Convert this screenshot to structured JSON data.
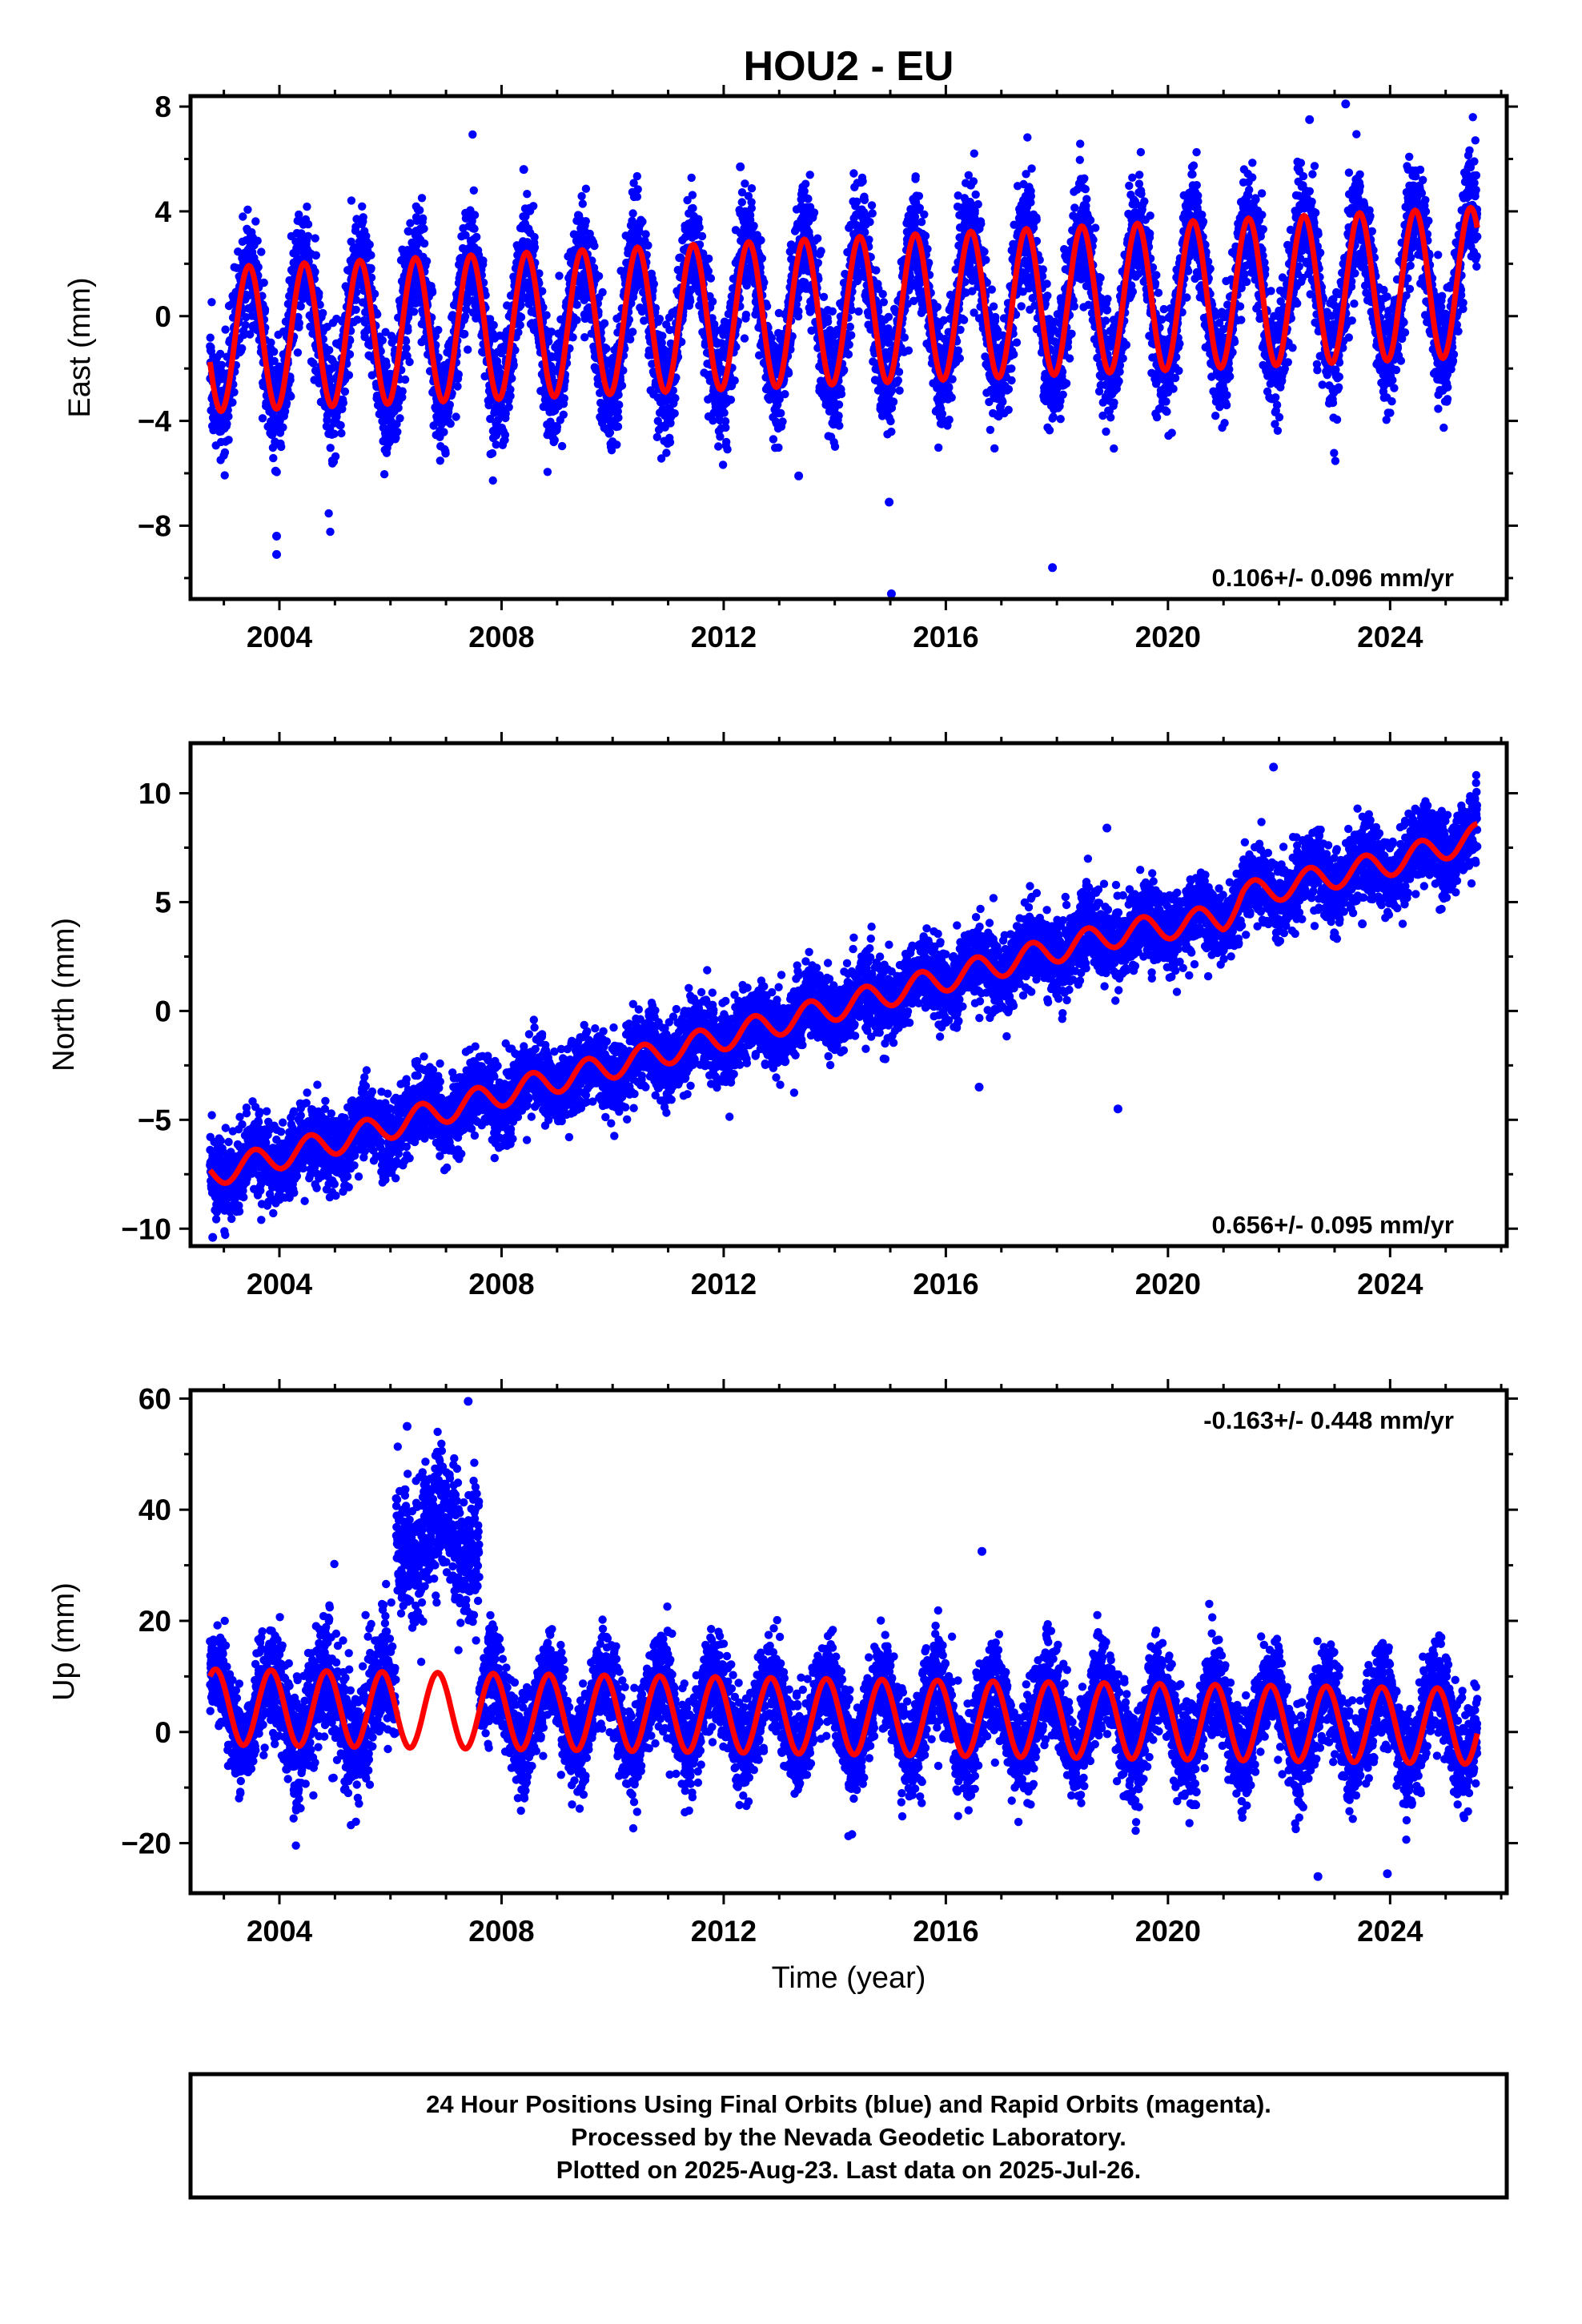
{
  "title": "HOU2 - EU",
  "x_label": "Time (year)",
  "footer": {
    "line1": "24 Hour Positions Using Final Orbits (blue) and Rapid Orbits (magenta).",
    "line2": "Processed by the Nevada Geodetic Laboratory.",
    "line3": "Plotted on 2025-Aug-23. Last data on 2025-Jul-26."
  },
  "colors": {
    "points": "#0000ff",
    "model": "#ff0000",
    "frame": "#000000"
  },
  "chart_data": [
    {
      "type": "scatter",
      "ylabel": "East (mm)",
      "rate": "0.106+/- 0.096 mm/yr",
      "xlim": [
        2002.4,
        2026.1
      ],
      "ylim": [
        -10.8,
        8.4
      ],
      "xticks": [
        2004,
        2008,
        2012,
        2016,
        2020,
        2024
      ],
      "xtick_labels": [
        "2004",
        "2008",
        "2012",
        "2016",
        "2020",
        "2024"
      ],
      "yticks": [
        -8,
        -4,
        0,
        4,
        8
      ],
      "ytick_labels": [
        "−8",
        "−4",
        "0",
        "4",
        "8"
      ],
      "data_range": [
        2002.75,
        2025.57
      ],
      "model": {
        "offset": -0.9,
        "slope": 0.106,
        "amp_start": 2.75,
        "amp_end": 2.85,
        "phase_year": 0.2,
        "mid_start": -0.9,
        "mid_end": 1.3
      },
      "scatter_sd": 1.1,
      "outliers": [
        [
          2003.95,
          -9.1
        ],
        [
          2003.95,
          -8.4
        ],
        [
          2014.98,
          -7.1
        ],
        [
          2015.02,
          -10.6
        ],
        [
          2017.92,
          -9.6
        ],
        [
          2012.3,
          5.7
        ],
        [
          2008.4,
          5.6
        ],
        [
          2023.2,
          8.1
        ],
        [
          2022.55,
          7.5
        ],
        [
          2013.35,
          -6.1
        ]
      ],
      "series": [
        {
          "name": "Final Orbits",
          "color": "#0000ff"
        },
        {
          "name": "Model",
          "color": "#ff0000"
        }
      ]
    },
    {
      "type": "scatter",
      "ylabel": "North (mm)",
      "rate": "0.656+/- 0.095 mm/yr",
      "xlim": [
        2002.4,
        2026.1
      ],
      "ylim": [
        -10.8,
        12.3
      ],
      "xticks": [
        2004,
        2008,
        2012,
        2016,
        2020,
        2024
      ],
      "xtick_labels": [
        "2004",
        "2008",
        "2012",
        "2016",
        "2020",
        "2024"
      ],
      "yticks": [
        -10,
        -5,
        0,
        5,
        10
      ],
      "ytick_labels": [
        "−10",
        "−5",
        "0",
        "5",
        "10"
      ],
      "data_range": [
        2002.75,
        2025.57
      ],
      "model_points": [
        [
          2002.75,
          -7.5
        ],
        [
          2005.0,
          -6.0
        ],
        [
          2008.0,
          -3.8
        ],
        [
          2012.0,
          -1.2
        ],
        [
          2016.0,
          1.5
        ],
        [
          2019.0,
          3.5
        ],
        [
          2021.0,
          4.3
        ],
        [
          2021.35,
          5.3
        ],
        [
          2024.0,
          6.8
        ],
        [
          2025.57,
          8.0
        ]
      ],
      "seasonal_amp": 0.6,
      "scatter_sd": 0.85,
      "outliers": [
        [
          2002.8,
          -10.4
        ],
        [
          2019.1,
          -4.5
        ],
        [
          2018.9,
          8.4
        ],
        [
          2016.6,
          -3.5
        ],
        [
          2021.9,
          11.2
        ],
        [
          2023.5,
          4.0
        ]
      ],
      "series": [
        {
          "name": "Final Orbits",
          "color": "#0000ff"
        },
        {
          "name": "Model",
          "color": "#ff0000"
        }
      ]
    },
    {
      "type": "scatter",
      "ylabel": "Up (mm)",
      "rate": "-0.163+/- 0.448 mm/yr",
      "xlim": [
        2002.4,
        2026.1
      ],
      "ylim": [
        -29.0,
        61.5
      ],
      "xticks": [
        2004,
        2008,
        2012,
        2016,
        2020,
        2024
      ],
      "xtick_labels": [
        "2004",
        "2008",
        "2012",
        "2016",
        "2020",
        "2024"
      ],
      "yticks": [
        -20,
        0,
        20,
        40,
        60
      ],
      "ytick_labels": [
        "−20",
        "0",
        "20",
        "40",
        "60"
      ],
      "data_range": [
        2002.75,
        2025.57
      ],
      "model": {
        "offset": 5.0,
        "slope": -0.2,
        "amp_start": 6.8,
        "amp_end": 6.8,
        "phase_year": 0.6,
        "mid_start": 4.5,
        "mid_end": 1.0
      },
      "scatter_sd": 4.2,
      "offset_period": {
        "start": 2006.1,
        "end": 2007.6,
        "level": 35,
        "sd": 6
      },
      "outliers": [
        [
          2016.65,
          32.5
        ],
        [
          2007.4,
          59.5
        ],
        [
          2006.3,
          55.0
        ],
        [
          2022.7,
          -26.0
        ],
        [
          2023.95,
          -25.5
        ]
      ],
      "series": [
        {
          "name": "Final Orbits",
          "color": "#0000ff"
        },
        {
          "name": "Model",
          "color": "#ff0000"
        }
      ]
    }
  ]
}
